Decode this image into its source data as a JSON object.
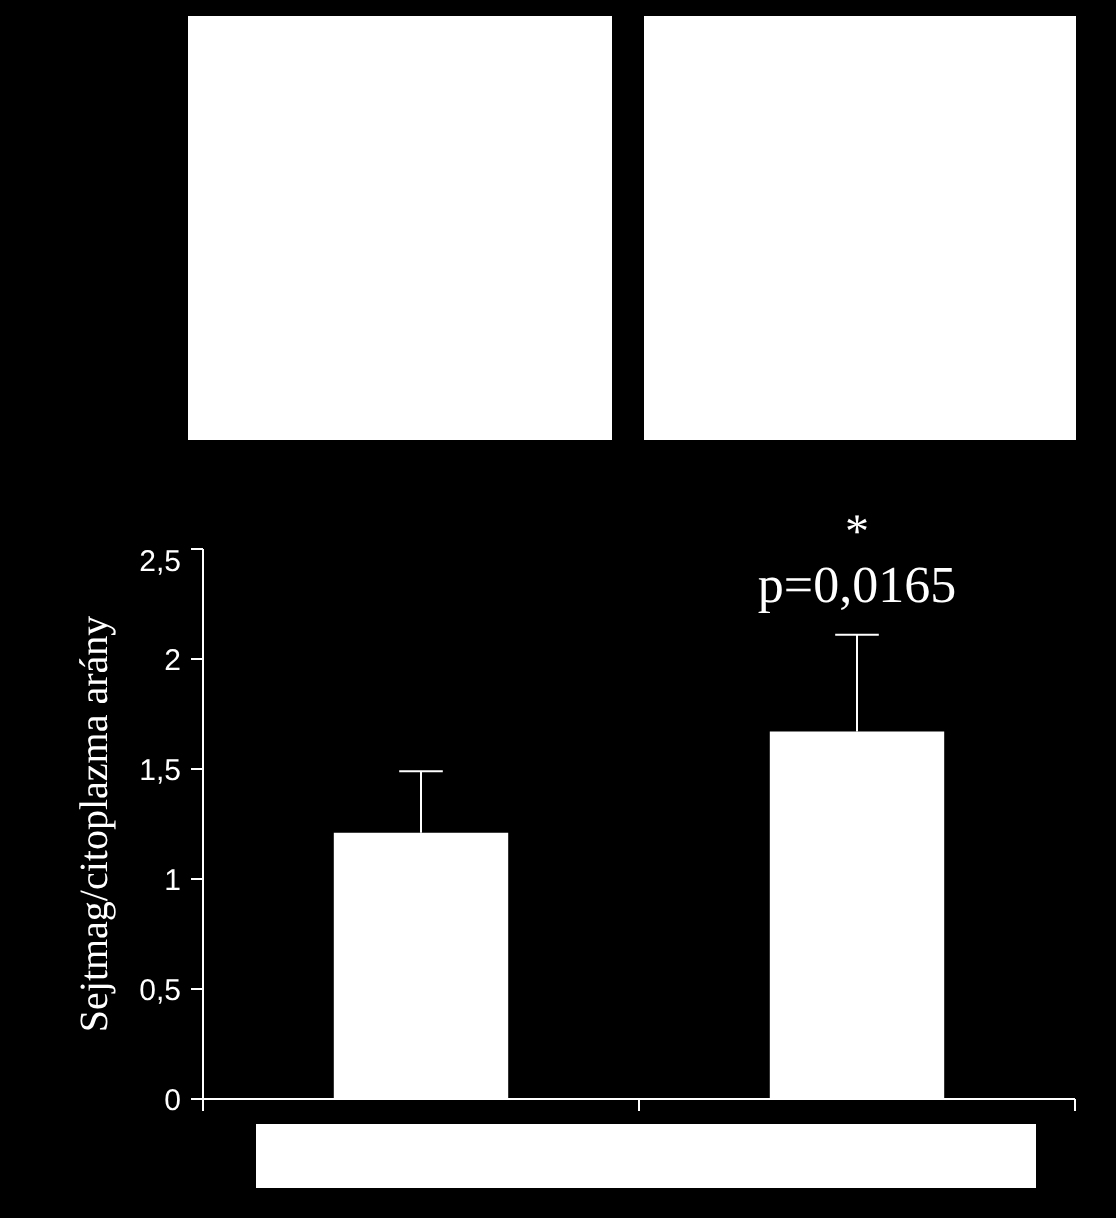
{
  "chart_data": {
    "type": "bar",
    "ylabel": "Sejtmag/citoplazma arány",
    "categories": [
      null,
      null
    ],
    "values": [
      1.21,
      1.67
    ],
    "errors": [
      [
        1.21,
        1.49
      ],
      [
        1.67,
        2.11
      ]
    ],
    "colors": [
      "#ffffff",
      "#ffffff"
    ],
    "ylim": [
      0,
      2.5
    ],
    "yticks": [
      {
        "value": 0,
        "label": "0"
      },
      {
        "value": 0.5,
        "label": "0,5"
      },
      {
        "value": 1,
        "label": "1"
      },
      {
        "value": 1.5,
        "label": "1,5"
      },
      {
        "value": 2,
        "label": "2"
      },
      {
        "value": 2.5,
        "label": "2,5"
      }
    ],
    "grid": false,
    "annotations": [
      "*",
      "p=0,0165"
    ]
  }
}
